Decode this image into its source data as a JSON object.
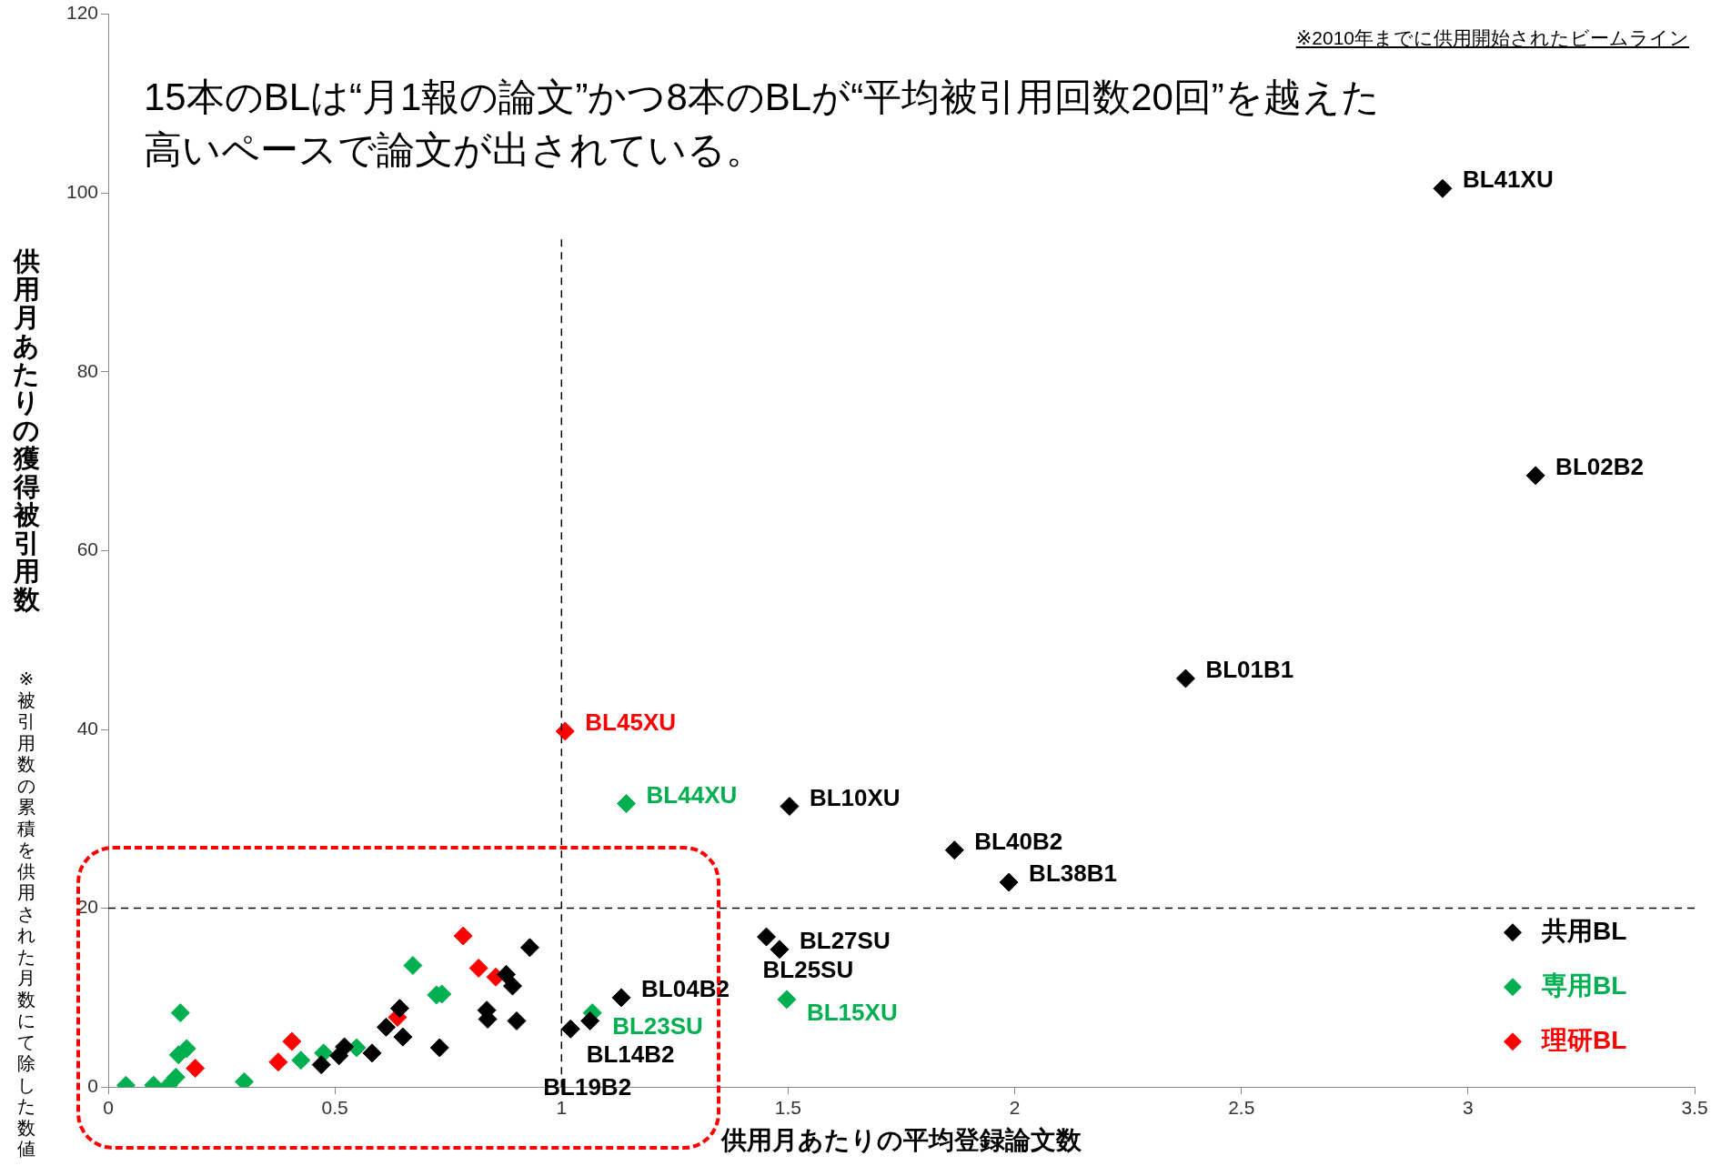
{
  "chart_data": {
    "type": "scatter",
    "title": "15本のBLは“月1報の論文”かつ8本のBLが“平均被引用回数20回”を越えた高いペースで論文が出されている。",
    "xlabel": "供用月あたりの平均登録論文数",
    "ylabel": "供用月あたりの獲得被引用数",
    "xlim": [
      0,
      3.5
    ],
    "xticks": [
      0,
      0.5,
      1,
      1.5,
      2,
      2.5,
      3,
      3.5
    ],
    "ylim": [
      0,
      120
    ],
    "yticks": [
      0,
      20,
      40,
      60,
      80,
      100,
      120
    ],
    "grid": false,
    "legend": "bottom right",
    "marker": "diamond",
    "series": [
      {
        "name": "共用BL",
        "color": "#000000",
        "x": [
          0.47,
          0.509,
          0.521,
          0.582,
          0.613,
          0.643,
          0.65,
          0.731,
          0.835,
          0.837,
          0.878,
          0.892,
          0.901,
          0.93,
          1.02,
          1.063,
          1.132,
          1.452,
          1.481,
          1.503,
          1.867,
          1.987,
          2.377,
          3.149,
          2.944
        ],
        "values": [
          2.5,
          3.5,
          4.5,
          3.8,
          6.7,
          8.8,
          5.6,
          4.4,
          8.6,
          7.6,
          12.6,
          11.3,
          7.4,
          15.6,
          6.5,
          7.4,
          10.0,
          16.8,
          15.4,
          31.4,
          26.5,
          22.9,
          45.7,
          68.4,
          100.5
        ]
      },
      {
        "name": "専用BL",
        "color": "#00b050",
        "x": [
          0.039,
          0.1,
          0.133,
          0.149,
          0.155,
          0.159,
          0.173,
          0.3,
          0.425,
          0.475,
          0.548,
          0.672,
          0.724,
          0.736,
          1.068,
          1.497,
          1.143
        ],
        "values": [
          0.2,
          0.2,
          0.2,
          1.1,
          3.6,
          8.3,
          4.3,
          0.6,
          3.0,
          3.8,
          4.4,
          13.6,
          10.3,
          10.4,
          8.3,
          9.8,
          31.7
        ]
      },
      {
        "name": "理研BL",
        "color": "#ff0000",
        "x": [
          0.192,
          0.375,
          0.405,
          0.638,
          0.783,
          0.817,
          0.855,
          1.008
        ],
        "values": [
          2.1,
          2.8,
          5.1,
          7.8,
          16.9,
          13.3,
          12.3,
          39.8
        ]
      }
    ],
    "ref_lines": [
      {
        "axis": "x",
        "value": 1,
        "line_style": "dashed",
        "color": "#000000"
      },
      {
        "axis": "y",
        "value": 20,
        "line_style": "dashed",
        "color": "#000000"
      }
    ],
    "annotations": [
      "※2010年までに供用開始されたビームライン",
      "※被引用数の累積を供用された月数にて除した数値",
      {
        "text": "BL41XU",
        "x": 2.944,
        "y": 100.5
      },
      {
        "text": "BL02B2",
        "x": 3.149,
        "y": 68.4
      },
      {
        "text": "BL01B1",
        "x": 2.377,
        "y": 45.7
      },
      {
        "text": "BL45XU",
        "x": 1.008,
        "y": 39.8
      },
      {
        "text": "BL44XU",
        "x": 1.143,
        "y": 31.7
      },
      {
        "text": "BL10XU",
        "x": 1.503,
        "y": 31.4
      },
      {
        "text": "BL40B2",
        "x": 1.867,
        "y": 26.5
      },
      {
        "text": "BL38B1",
        "x": 1.987,
        "y": 22.9
      },
      {
        "text": "BL25SU",
        "x": 1.452,
        "y": 16.8
      },
      {
        "text": "BL27SU",
        "x": 1.481,
        "y": 15.4
      },
      {
        "text": "BL23SU",
        "x": 1.068,
        "y": 8.3
      },
      {
        "text": "BL15XU",
        "x": 1.497,
        "y": 9.8
      },
      {
        "text": "BL04B2",
        "x": 1.132,
        "y": 10.0
      },
      {
        "text": "BL14B2",
        "x": 1.063,
        "y": 7.4
      },
      {
        "text": "BL19B2",
        "x": 1.02,
        "y": 6.5
      }
    ]
  }
}
